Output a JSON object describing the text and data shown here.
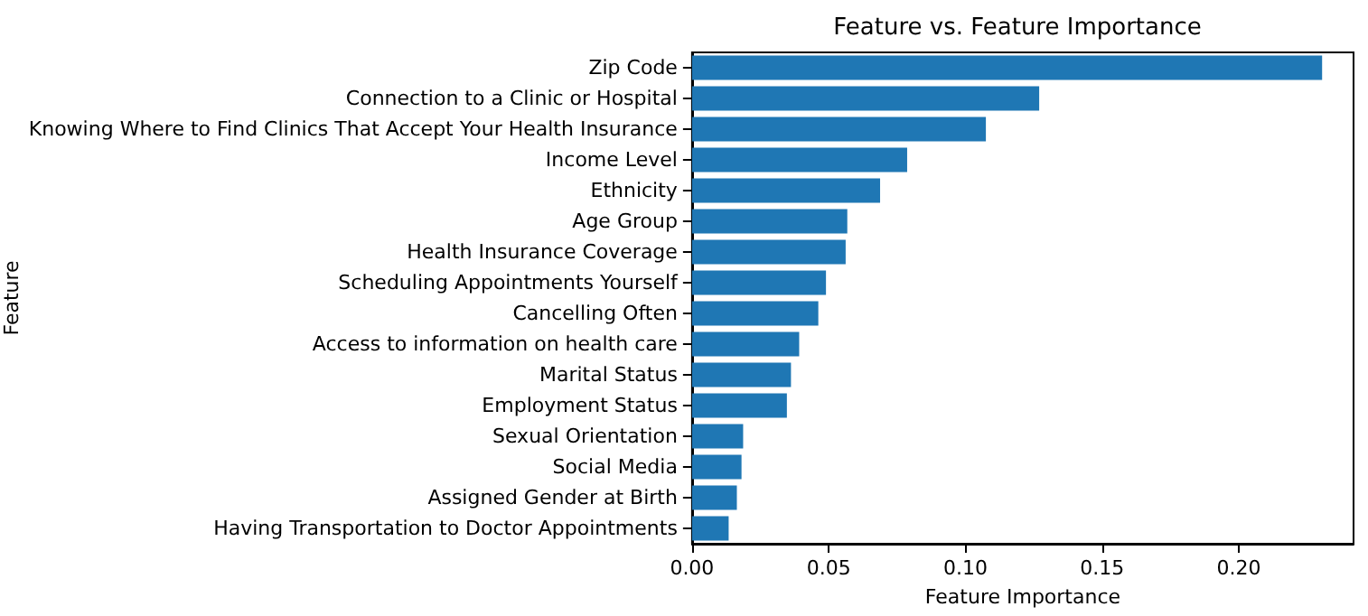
{
  "chart_data": {
    "type": "bar",
    "orientation": "horizontal",
    "title": "Feature vs. Feature Importance",
    "xlabel": "Feature Importance",
    "ylabel": "Feature",
    "categories": [
      "Zip Code",
      "Connection to a Clinic or Hospital",
      "Knowing Where to Find Clinics That Accept Your Health Insurance",
      "Income Level",
      "Ethnicity",
      "Age Group",
      "Health Insurance Coverage",
      "Scheduling Appointments Yourself",
      "Cancelling Often",
      "Access to information on health care",
      "Marital Status",
      "Employment Status",
      "Sexual Orientation",
      "Social Media",
      "Assigned Gender at Birth",
      "Having Transportation to Doctor Appointments"
    ],
    "values": [
      0.2305,
      0.127,
      0.1075,
      0.0787,
      0.0688,
      0.0568,
      0.0562,
      0.049,
      0.0462,
      0.0392,
      0.0362,
      0.0347,
      0.0187,
      0.0181,
      0.0164,
      0.0134
    ],
    "color": "#1f77b4",
    "xlim": [
      0,
      0.242
    ],
    "xticks": [
      {
        "value": 0,
        "label": "0.00"
      },
      0.05,
      {
        "value": 0.1,
        "label": "0.10"
      },
      0.15,
      {
        "value": 0.2,
        "label": "0.20"
      }
    ],
    "grid": false
  }
}
